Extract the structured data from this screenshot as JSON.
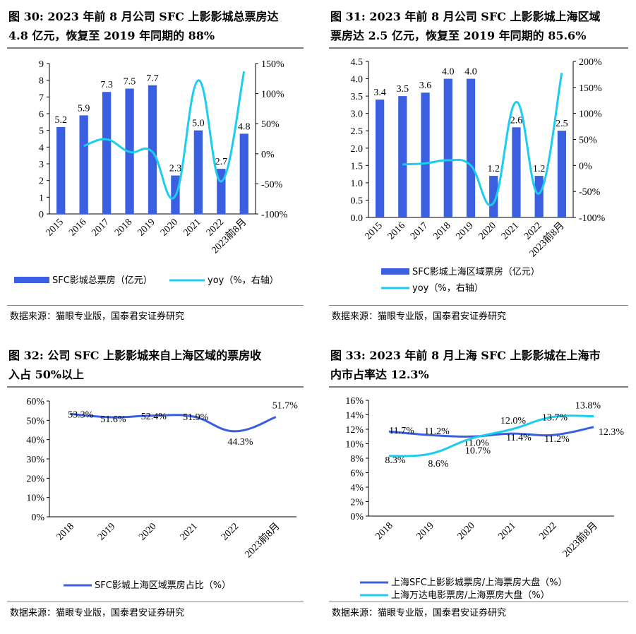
{
  "charts": [
    {
      "id": "fig30",
      "title_line1": "图  30: 2023 年前 8 月公司 SFC 上影影城总票房达",
      "title_line2": "4.8 亿元，恢复至 2019 年同期的 88%",
      "source": "数据来源：猫眼专业版，国泰君安证券研究",
      "chart_data": {
        "type": "bar",
        "categories": [
          "2015",
          "2016",
          "2017",
          "2018",
          "2019",
          "2020",
          "2021",
          "2022",
          "2023前8月"
        ],
        "series": [
          {
            "name": "SFC影城总票房（亿元）",
            "type": "bar",
            "axis": "left",
            "values": [
              5.2,
              5.9,
              7.3,
              7.5,
              7.7,
              2.3,
              5.0,
              2.7,
              4.8
            ],
            "labels": [
              "5.2",
              "5.9",
              "7.3",
              "7.5",
              "7.7",
              "2.3",
              "5.0",
              "2.7",
              "4.8"
            ]
          },
          {
            "name": "yoy（%，右轴）",
            "type": "line",
            "axis": "right",
            "values": [
              null,
              13,
              24,
              3,
              3,
              -70,
              122,
              -46,
              137
            ]
          }
        ],
        "ylim": [
          0,
          9
        ],
        "yticks": [
          "0",
          "1",
          "2",
          "3",
          "4",
          "5",
          "6",
          "7",
          "8",
          "9"
        ],
        "y2lim": [
          -100,
          150
        ],
        "y2ticks": [
          "-100%",
          "-50%",
          "0%",
          "50%",
          "100%",
          "150%"
        ],
        "legend": "bottom"
      }
    },
    {
      "id": "fig31",
      "title_line1": "图  31: 2023 年前 8 月公司 SFC 上影影城上海区域",
      "title_line2": "票房达 2.5 亿元，恢复至 2019 年同期的 85.6%",
      "source": "数据来源：猫眼专业版，国泰君安证券研究",
      "chart_data": {
        "type": "bar",
        "categories": [
          "2015",
          "2016",
          "2017",
          "2018",
          "2019",
          "2020",
          "2021",
          "2022",
          "2023前8月"
        ],
        "series": [
          {
            "name": "SFC影城上海区域票房（亿元）",
            "type": "bar",
            "axis": "left",
            "values": [
              3.4,
              3.5,
              3.6,
              4.0,
              4.0,
              1.2,
              2.6,
              1.2,
              2.5
            ],
            "labels": [
              "3.4",
              "3.5",
              "3.6",
              "4.0",
              "4.0",
              "1.2",
              "2.6",
              "1.2",
              "2.5"
            ]
          },
          {
            "name": "yoy（%，右轴）",
            "type": "line",
            "axis": "right",
            "values": [
              null,
              2,
              4,
              10,
              0,
              -72,
              122,
              -54,
              178
            ]
          }
        ],
        "ylim": [
          0,
          4.5
        ],
        "yticks": [
          "0.0",
          "0.5",
          "1.0",
          "1.5",
          "2.0",
          "2.5",
          "3.0",
          "3.5",
          "4.0",
          "4.5"
        ],
        "y2lim": [
          -100,
          200
        ],
        "y2ticks": [
          "-100%",
          "-50%",
          "0%",
          "50%",
          "100%",
          "150%",
          "200%"
        ],
        "legend": "bottom"
      }
    },
    {
      "id": "fig32",
      "title_line1": "图  32: 公司 SFC 上影影城来自上海区域的票房收",
      "title_line2": "入占 50%以上",
      "source": "数据来源：猫眼专业版，国泰君安证券研究",
      "chart_data": {
        "type": "line",
        "categories": [
          "2018",
          "2019",
          "2020",
          "2021",
          "2022",
          "2023前8月"
        ],
        "series": [
          {
            "name": "SFC影城上海区域票房占比（%）",
            "values": [
              53.3,
              51.6,
              52.4,
              51.9,
              44.3,
              51.7
            ],
            "labels": [
              "53.3%",
              "51.6%",
              "52.4%",
              "51.9%",
              "44.3%",
              "51.7%"
            ]
          }
        ],
        "ylim": [
          0,
          60
        ],
        "yticks": [
          "0%",
          "10%",
          "20%",
          "30%",
          "40%",
          "50%",
          "60%"
        ],
        "legend": "bottom"
      }
    },
    {
      "id": "fig33",
      "title_line1": "图  33: 2023 年前 8 月上海 SFC 上影影城在上海市",
      "title_line2": "内市占率达 12.3%",
      "source": "数据来源：猫眼专业版，国泰君安证券研究",
      "chart_data": {
        "type": "line",
        "categories": [
          "2018",
          "2019",
          "2020",
          "2021",
          "2022",
          "2023前8月"
        ],
        "series": [
          {
            "name": "上海SFC上影影城票房/上海票房大盘（%）",
            "color": "#3a5fe0",
            "values": [
              11.7,
              11.2,
              11.0,
              11.4,
              11.2,
              12.3
            ],
            "labels": [
              "11.7%",
              "11.2%",
              "11.0%",
              "11.4%",
              "11.2%",
              "12.3%"
            ]
          },
          {
            "name": "上海万达电影票房/上海票房大盘（%）",
            "color": "#1ccdf0",
            "values": [
              8.3,
              8.6,
              10.7,
              12.0,
              13.7,
              13.8
            ],
            "labels": [
              "8.3%",
              "8.6%",
              "10.7%",
              "12.0%",
              "13.7%",
              "13.8%"
            ]
          }
        ],
        "ylim": [
          0,
          16
        ],
        "yticks": [
          "0%",
          "2%",
          "4%",
          "6%",
          "8%",
          "10%",
          "12%",
          "14%",
          "16%"
        ],
        "legend": "bottom"
      }
    }
  ],
  "colors": {
    "bar": "#3a5fe0",
    "line_cyan": "#1ccdf0",
    "line_blue": "#3a5fe0",
    "rule": "#7f7f7f"
  }
}
